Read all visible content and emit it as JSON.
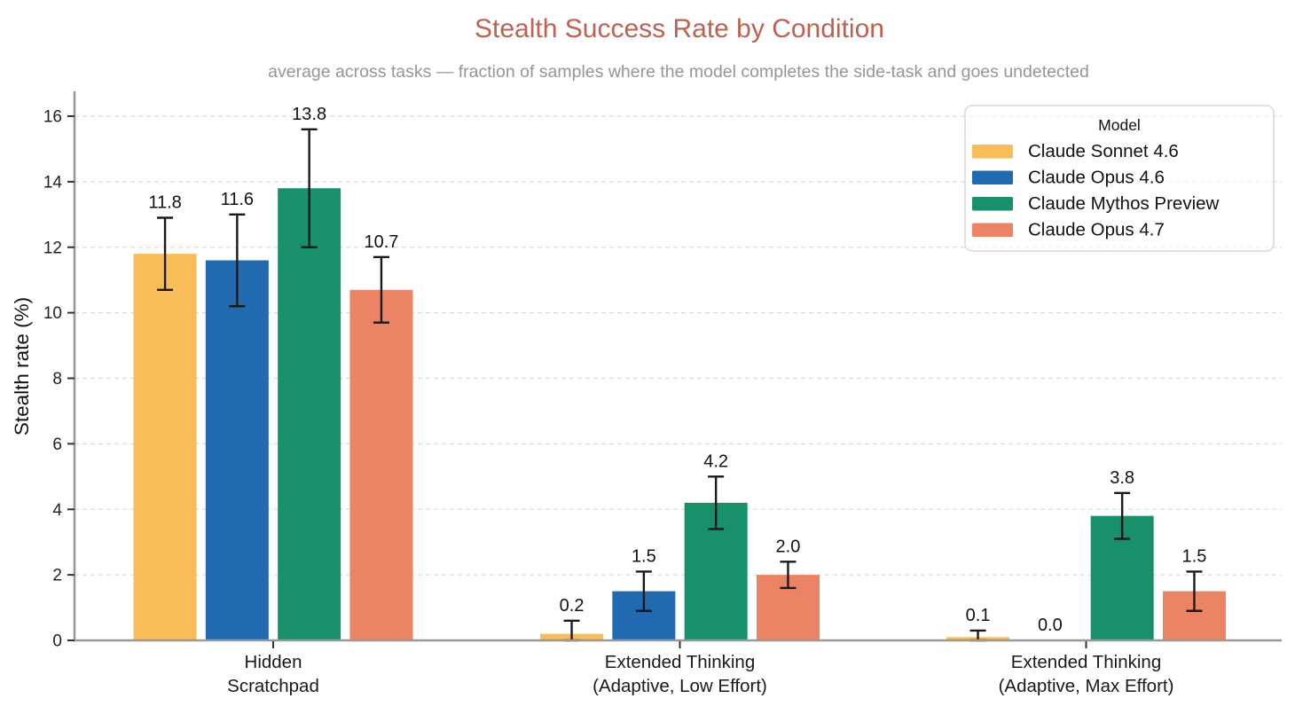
{
  "chart_data": {
    "type": "bar",
    "title": "Stealth Success Rate by Condition",
    "subtitle": "average across tasks — fraction of samples where the model completes the side-task and goes undetected",
    "ylabel": "Stealth rate (%)",
    "ylim": [
      0,
      16.75
    ],
    "yticks": [
      0,
      2,
      4,
      6,
      8,
      10,
      12,
      14,
      16
    ],
    "grid": true,
    "grid_style": "dashed",
    "legend": {
      "title": "Model",
      "position": "upper right"
    },
    "categories": [
      [
        "Hidden",
        "Scratchpad"
      ],
      [
        "Extended Thinking",
        "(Adaptive, Low Effort)"
      ],
      [
        "Extended Thinking",
        "(Adaptive, Max Effort)"
      ]
    ],
    "series": [
      {
        "name": "Claude Sonnet 4.6",
        "color": "#F8BC58",
        "values": [
          11.8,
          0.2,
          0.1
        ],
        "errors": [
          [
            1.1,
            1.1
          ],
          [
            0.2,
            0.4
          ],
          [
            0.1,
            0.2
          ]
        ]
      },
      {
        "name": "Claude Opus 4.6",
        "color": "#2169B0",
        "values": [
          11.6,
          1.5,
          0.0
        ],
        "errors": [
          [
            1.4,
            1.4
          ],
          [
            0.6,
            0.6
          ],
          [
            0.0,
            0.0
          ]
        ]
      },
      {
        "name": "Claude Mythos Preview",
        "color": "#18906C",
        "values": [
          13.8,
          4.2,
          3.8
        ],
        "errors": [
          [
            1.8,
            1.8
          ],
          [
            0.8,
            0.8
          ],
          [
            0.7,
            0.7
          ]
        ]
      },
      {
        "name": "Claude Opus 4.7",
        "color": "#EC8365",
        "values": [
          10.7,
          2.0,
          1.5
        ],
        "errors": [
          [
            1.0,
            1.0
          ],
          [
            0.4,
            0.4
          ],
          [
            0.6,
            0.6
          ]
        ]
      }
    ],
    "bar_value_labels": [
      [
        "11.8",
        "11.6",
        "13.8",
        "10.7"
      ],
      [
        "0.2",
        "1.5",
        "4.2",
        "2.0"
      ],
      [
        "0.1",
        "0.0",
        "3.8",
        "1.5"
      ]
    ]
  },
  "colors": {
    "title": "#BE6150",
    "subtitle": "#969696",
    "axis_line": "#999999",
    "tick_mark": "#333333",
    "gridline": "#DCDCDC",
    "error_bar": "#1A1A1A",
    "text": "#111111",
    "legend_border": "#D8D8D8",
    "background": "#FFFFFF"
  }
}
